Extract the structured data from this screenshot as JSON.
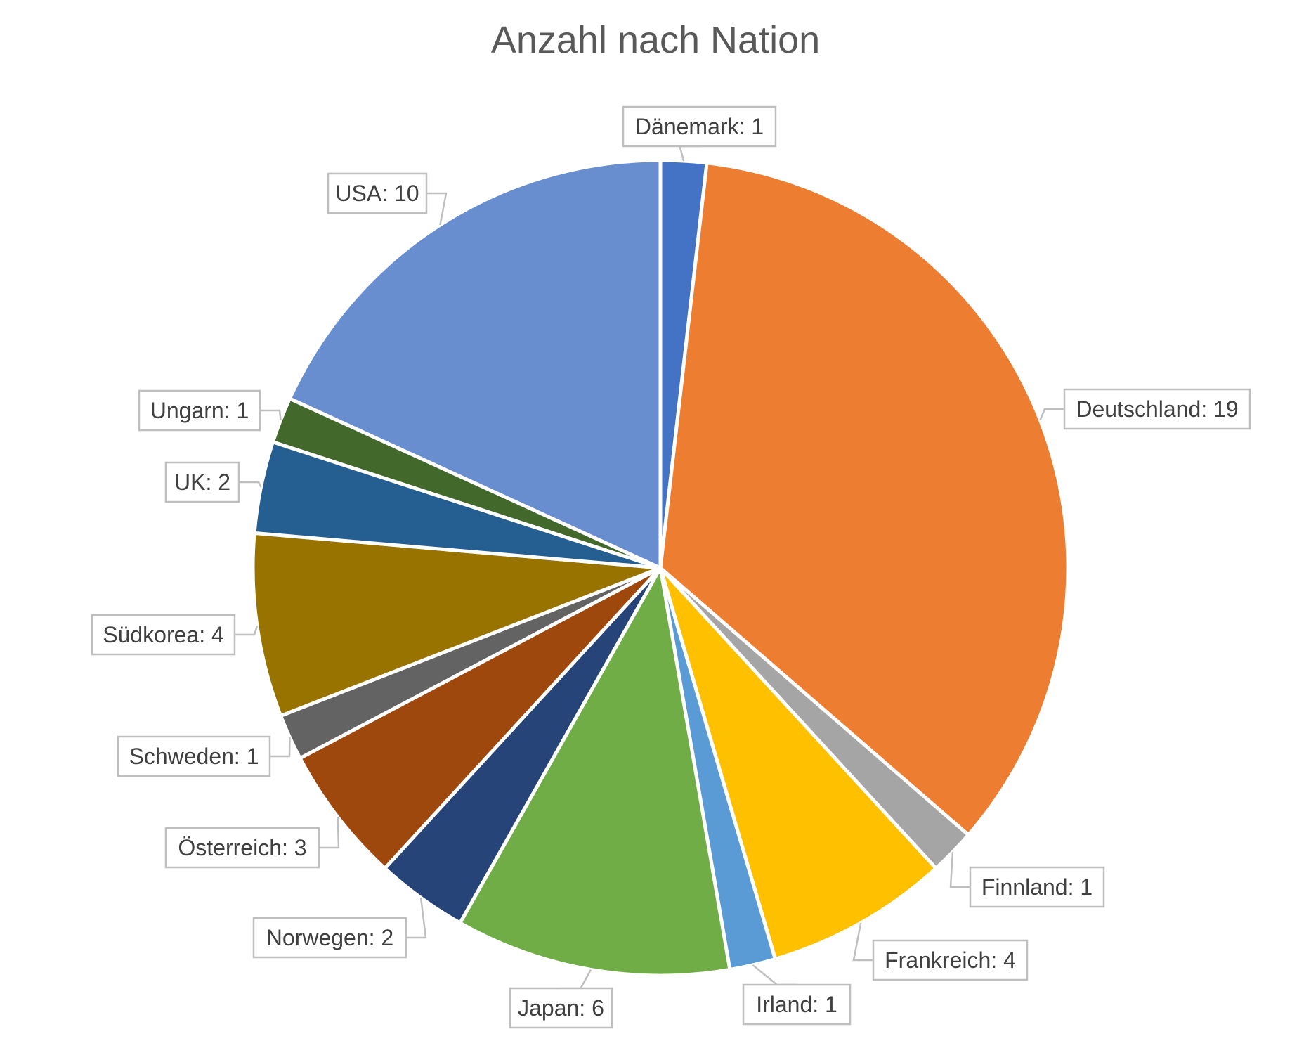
{
  "chart_data": {
    "type": "pie",
    "title": "Anzahl nach Nation",
    "categories": [
      "Dänemark",
      "Deutschland",
      "Finnland",
      "Frankreich",
      "Irland",
      "Japan",
      "Norwegen",
      "Österreich",
      "Schweden",
      "Südkorea",
      "UK",
      "Ungarn",
      "USA"
    ],
    "values": [
      1,
      19,
      1,
      4,
      1,
      6,
      2,
      3,
      1,
      4,
      2,
      1,
      10
    ],
    "labels": [
      "Dänemark: 1",
      "Deutschland: 19",
      "Finnland: 1",
      "Frankreich: 4",
      "Irland: 1",
      "Japan: 6",
      "Norwegen: 2",
      "Österreich: 3",
      "Schweden: 1",
      "Südkorea: 4",
      "UK: 2",
      "Ungarn: 1",
      "USA: 10"
    ],
    "colors": [
      "#4472C4",
      "#ED7D31",
      "#A5A5A5",
      "#FFC000",
      "#5B9BD5",
      "#70AD47",
      "#264478",
      "#9E480E",
      "#636363",
      "#997300",
      "#255E91",
      "#43682B",
      "#698ED0"
    ],
    "start_angle_deg": 0,
    "direction": "clockwise",
    "legend": "none",
    "data_labels": "outside-callout"
  }
}
